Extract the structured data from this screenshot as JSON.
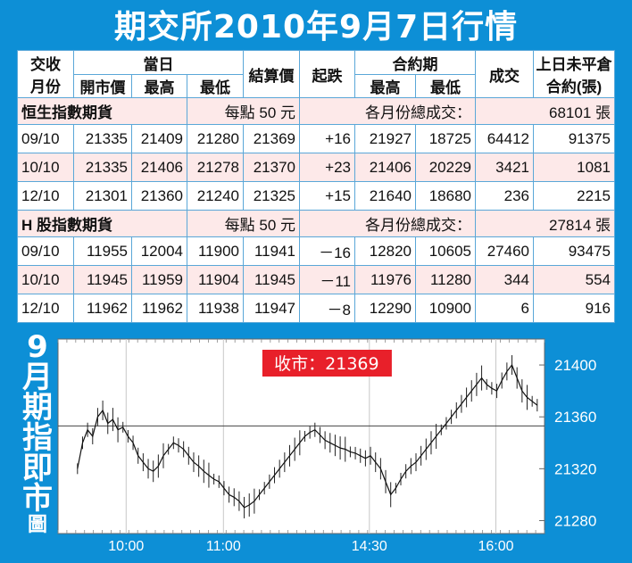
{
  "title": "期交所2010年9月7日行情",
  "table": {
    "h_contract_month": "交收月份",
    "h_contract_line1": "交收",
    "h_contract_line2": "月份",
    "h_today": "當日",
    "h_open": "開市價",
    "h_high": "最高",
    "h_low": "最低",
    "h_settle": "結算價",
    "h_change": "起跌",
    "h_life": "合約期",
    "h_life_high": "最高",
    "h_life_low": "最低",
    "h_volume": "成交",
    "h_oi_line1": "上日未平倉",
    "h_oi_line2": "合約(張)",
    "sections": [
      {
        "name": "恒生指數期貨",
        "point_value": "每點 50 元",
        "volume_label": "各月份總成交：",
        "volume_total": "68101 張",
        "rows": [
          {
            "month": "09/10",
            "open": "21335",
            "high": "21409",
            "low": "21280",
            "settle": "21369",
            "change": "+16",
            "life_high": "21927",
            "life_low": "18725",
            "volume": "64412",
            "oi": "91375"
          },
          {
            "month": "10/10",
            "open": "21335",
            "high": "21406",
            "low": "21278",
            "settle": "21370",
            "change": "+23",
            "life_high": "21406",
            "life_low": "20229",
            "volume": "3421",
            "oi": "1081"
          },
          {
            "month": "12/10",
            "open": "21301",
            "high": "21360",
            "low": "21240",
            "settle": "21325",
            "change": "+15",
            "life_high": "21640",
            "life_low": "18680",
            "volume": "236",
            "oi": "2215"
          }
        ]
      },
      {
        "name": "H 股指數期貨",
        "point_value": "每點 50 元",
        "volume_label": "各月份總成交：",
        "volume_total": "27814 張",
        "rows": [
          {
            "month": "09/10",
            "open": "11955",
            "high": "12004",
            "low": "11900",
            "settle": "11941",
            "change": "－16",
            "life_high": "12820",
            "life_low": "10605",
            "volume": "27460",
            "oi": "93475"
          },
          {
            "month": "10/10",
            "open": "11945",
            "high": "11959",
            "low": "11904",
            "settle": "11945",
            "change": "－11",
            "life_high": "11976",
            "life_low": "11280",
            "volume": "344",
            "oi": "554"
          },
          {
            "month": "12/10",
            "open": "11962",
            "high": "11962",
            "low": "11938",
            "settle": "11947",
            "change": "－8",
            "life_high": "12290",
            "life_low": "10900",
            "volume": "6",
            "oi": "916"
          }
        ]
      }
    ]
  },
  "chart_sidebar": {
    "chars": [
      "9",
      "月",
      "期",
      "指",
      "即",
      "市"
    ],
    "last": "圖"
  },
  "chart_data": {
    "type": "line",
    "title": "9月期指即市圖",
    "close_label": "收市：21369",
    "ylim": [
      21270,
      21420
    ],
    "y_ticks": [
      21400,
      21360,
      21320,
      21280
    ],
    "x_ticks": [
      "10:00",
      "11:00",
      "14:30",
      "16:00"
    ],
    "prev_settle": 21353,
    "series": [
      {
        "values": [
          21320,
          21340,
          21350,
          21345,
          21360,
          21365,
          21355,
          21358,
          21350,
          21352,
          21345,
          21340,
          21330,
          21325,
          21320,
          21318,
          21322,
          21330,
          21335,
          21340,
          21338,
          21335,
          21330,
          21325,
          21322,
          21318,
          21315,
          21312,
          21310,
          21305,
          21300,
          21298,
          21295,
          21290,
          21292,
          21295,
          21300,
          21305,
          21310,
          21315,
          21320,
          21325,
          21330,
          21335,
          21340,
          21345,
          21348,
          21350,
          21346,
          21342,
          21340,
          21338,
          21336,
          21335,
          21333,
          21332,
          21330,
          21328,
          21330,
          21325,
          21320,
          21310,
          21300,
          21305,
          21312,
          21318,
          21322,
          21325,
          21330,
          21335,
          21340,
          21345,
          21350,
          21355,
          21360,
          21365,
          21370,
          21375,
          21380,
          21385,
          21390,
          21385,
          21382,
          21380,
          21388,
          21395,
          21400,
          21390,
          21380,
          21375,
          21372,
          21369
        ]
      }
    ]
  },
  "colors": {
    "background": "#0d8fd6",
    "close_box": "#e8202a",
    "line": "#111111"
  }
}
